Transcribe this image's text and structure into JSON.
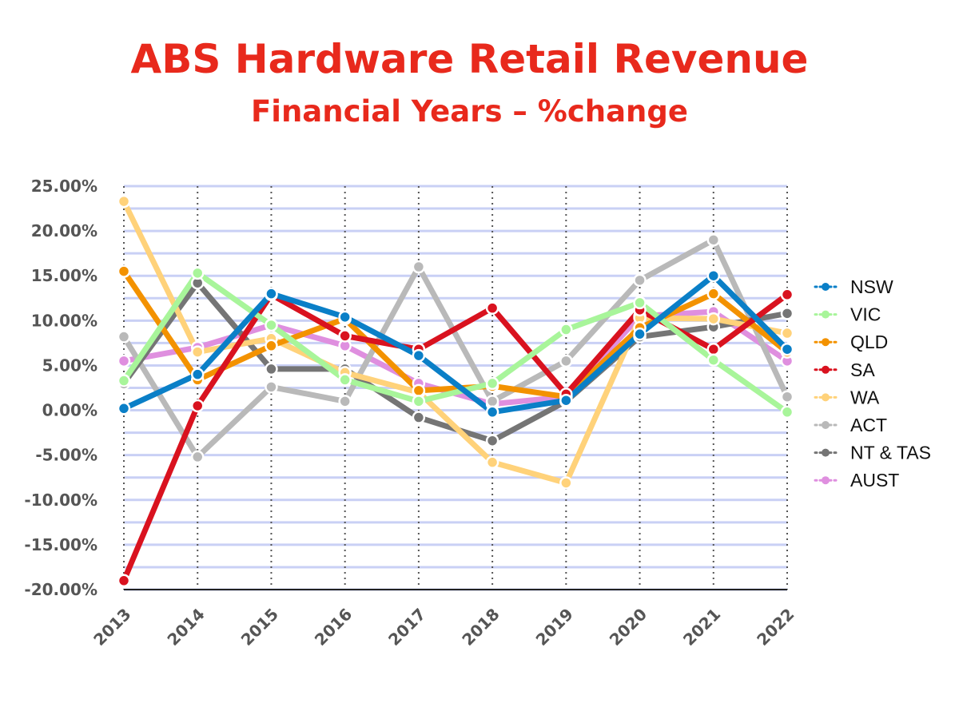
{
  "chart_data": {
    "type": "line",
    "title": "ABS Hardware Retail Revenue",
    "subtitle": "Financial Years – %change",
    "xlabel": "",
    "ylabel": "",
    "x": [
      "2013",
      "2014",
      "2015",
      "2016",
      "2017",
      "2018",
      "2019",
      "2020",
      "2021",
      "2022"
    ],
    "ylim": [
      -20,
      25
    ],
    "yticks": [
      25,
      20,
      15,
      10,
      5,
      0,
      -5,
      -10,
      -15,
      -20
    ],
    "ytick_labels": [
      "25.00%",
      "20.00%",
      "15.00%",
      "10.00%",
      "5.00%",
      "0.00%",
      "-5.00%",
      "-10.00%",
      "-15.00%",
      "-20.00%"
    ],
    "grid": true,
    "legend_position": "right",
    "series": [
      {
        "name": "AUST",
        "color": "#df8fdf",
        "values": [
          5.5,
          7.0,
          9.5,
          7.2,
          3.0,
          0.7,
          1.5,
          10.5,
          11.0,
          5.5
        ]
      },
      {
        "name": "ACT",
        "color": "#b9b9b9",
        "values": [
          8.2,
          -5.2,
          2.6,
          1.0,
          16.0,
          1.0,
          5.5,
          14.5,
          19.0,
          1.5
        ]
      },
      {
        "name": "NT & TAS",
        "color": "#757575",
        "values": [
          3.0,
          14.2,
          4.6,
          4.6,
          -0.8,
          -3.4,
          1.0,
          8.2,
          9.3,
          10.8
        ]
      },
      {
        "name": "WA",
        "color": "#ffd27a",
        "values": [
          23.3,
          6.5,
          8.0,
          4.2,
          2.0,
          -5.8,
          -8.1,
          10.3,
          10.2,
          8.6
        ]
      },
      {
        "name": "QLD",
        "color": "#f39200",
        "values": [
          15.5,
          3.4,
          7.2,
          10.2,
          2.2,
          2.7,
          1.5,
          9.2,
          13.0,
          6.5
        ]
      },
      {
        "name": "SA",
        "color": "#d9121f",
        "values": [
          -19.0,
          0.5,
          12.9,
          8.3,
          6.8,
          11.4,
          1.8,
          11.2,
          6.8,
          12.9
        ]
      },
      {
        "name": "VIC",
        "color": "#a8f59a",
        "values": [
          3.3,
          15.3,
          9.5,
          3.4,
          1.0,
          3.0,
          9.0,
          12.0,
          5.6,
          -0.2
        ]
      },
      {
        "name": "NSW",
        "color": "#0a7fc7",
        "values": [
          0.2,
          4.0,
          13.0,
          10.4,
          6.1,
          -0.2,
          1.1,
          8.5,
          15.0,
          6.8
        ]
      }
    ],
    "legend_order": [
      "NSW",
      "VIC",
      "QLD",
      "SA",
      "WA",
      "ACT",
      "NT & TAS",
      "AUST"
    ]
  }
}
